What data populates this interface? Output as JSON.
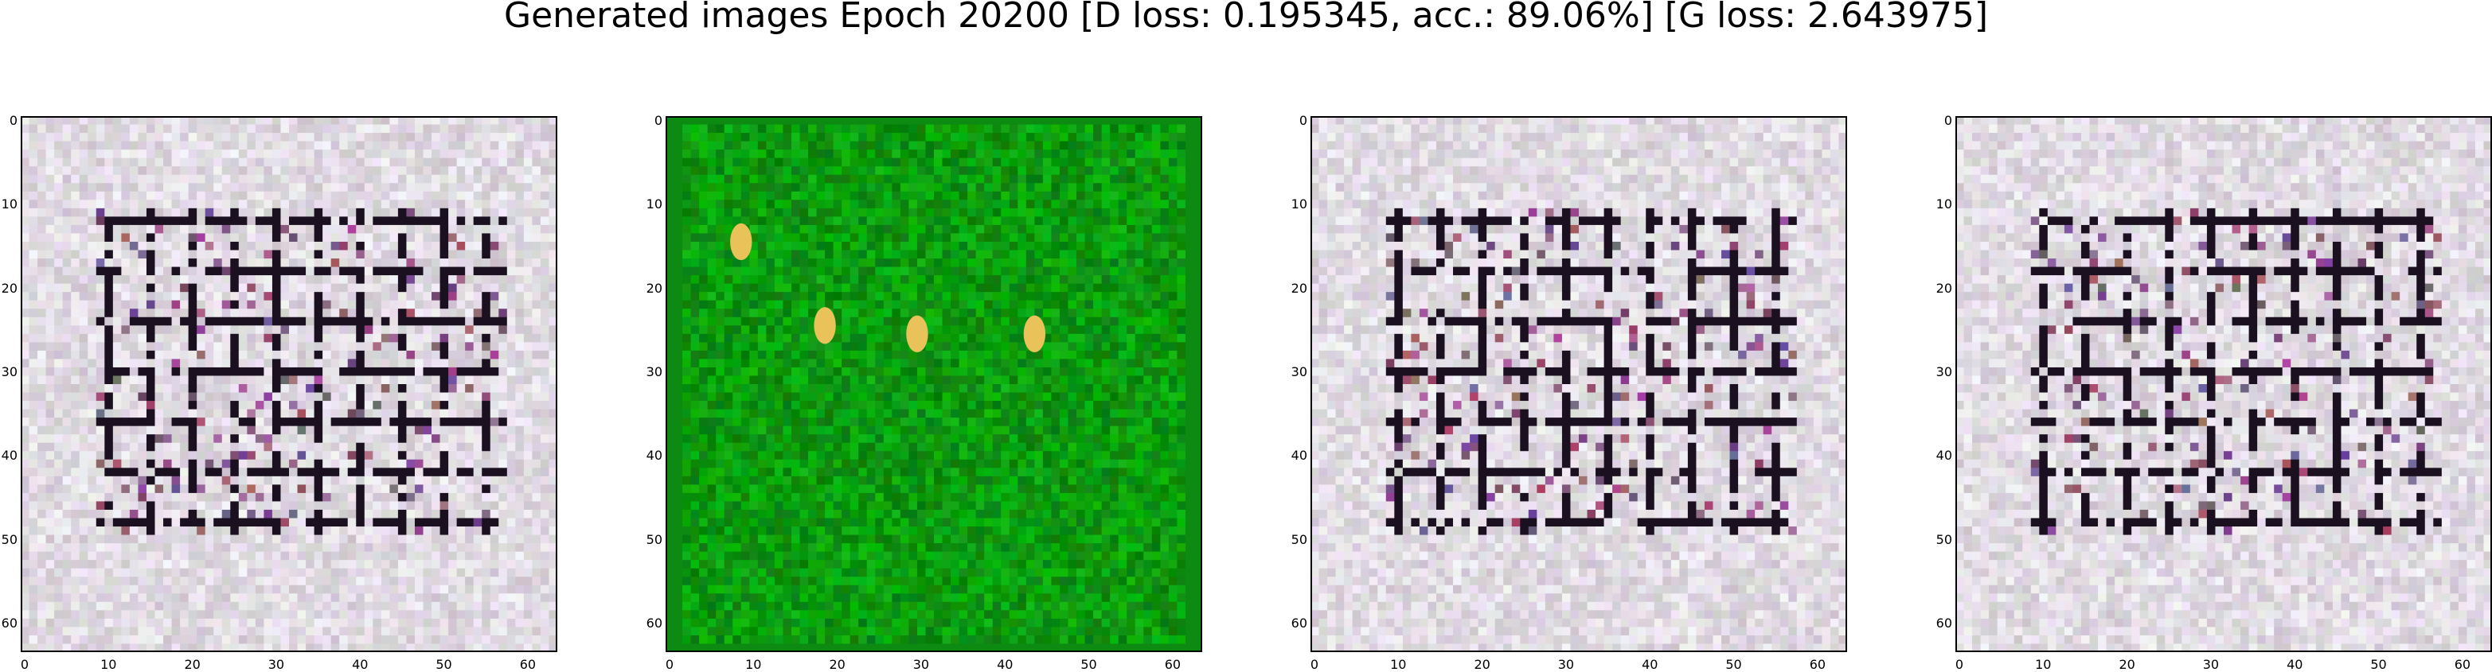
{
  "title": "Generated images Epoch 20200 [D loss: 0.195345, acc.: 89.06%] [G loss: 2.643975]",
  "panels": [
    {
      "name": "sample-1",
      "style": "light"
    },
    {
      "name": "sample-2",
      "style": "green"
    },
    {
      "name": "sample-3",
      "style": "light"
    },
    {
      "name": "sample-4",
      "style": "light"
    }
  ],
  "axes": {
    "x_ticks": [
      "0",
      "10",
      "20",
      "30",
      "40",
      "50",
      "60"
    ],
    "y_ticks": [
      "0",
      "10",
      "20",
      "30",
      "40",
      "50",
      "60"
    ],
    "range": [
      0,
      64
    ]
  },
  "colors": {
    "light_bg": "#e6d3d6",
    "green_bg": "#11a31a",
    "dark_mark": "#1a1020"
  }
}
